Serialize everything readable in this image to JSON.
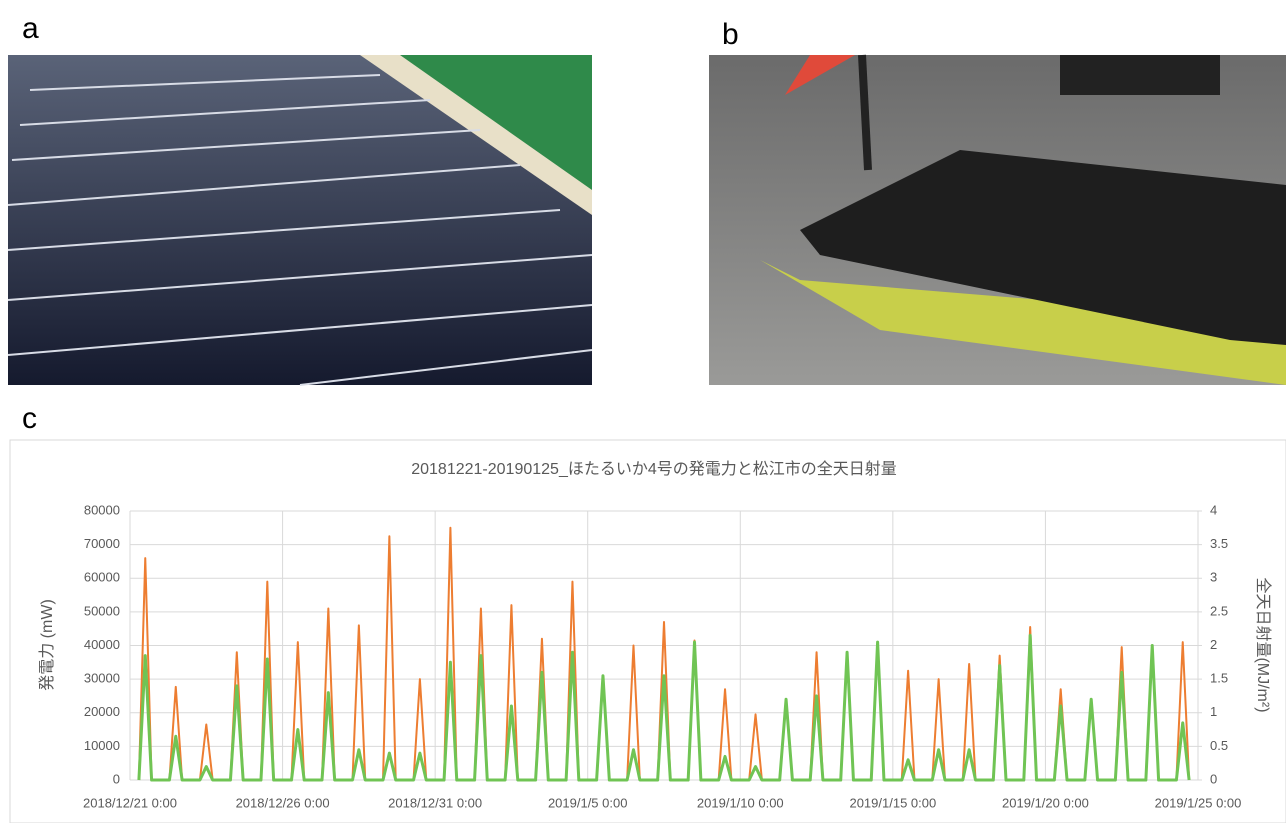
{
  "panel_labels": [
    "a",
    "b",
    "c"
  ],
  "chart_data": {
    "type": "line",
    "title": "20181221-20190125_ほたるいか4号の発電力と松江市の全天日射量",
    "y_label": "発電力 (mW)",
    "y2_label": "全天日射量(MJ/m²)",
    "x": [
      "2018/12/21 7:00",
      "2018/12/21 12:00",
      "2018/12/21 17:00",
      "2018/12/22 7:00",
      "2018/12/22 12:00",
      "2018/12/22 17:00",
      "2018/12/23 7:00",
      "2018/12/23 12:00",
      "2018/12/23 17:00",
      "2018/12/24 7:00",
      "2018/12/24 12:00",
      "2018/12/24 17:00",
      "2018/12/25 7:00",
      "2018/12/25 12:00",
      "2018/12/25 17:00",
      "2018/12/26 7:00",
      "2018/12/26 12:00",
      "2018/12/26 17:00",
      "2018/12/27 7:00",
      "2018/12/27 12:00",
      "2018/12/27 17:00",
      "2018/12/28 7:00",
      "2018/12/28 12:00",
      "2018/12/28 17:00",
      "2018/12/29 7:00",
      "2018/12/29 12:00",
      "2018/12/29 17:00",
      "2018/12/30 7:00",
      "2018/12/30 12:00",
      "2018/12/30 17:00",
      "2018/12/31 7:00",
      "2018/12/31 12:00",
      "2018/12/31 17:00",
      "2019/1/1 7:00",
      "2019/1/1 12:00",
      "2019/1/1 17:00",
      "2019/1/2 7:00",
      "2019/1/2 12:00",
      "2019/1/2 17:00",
      "2019/1/3 7:00",
      "2019/1/3 12:00",
      "2019/1/3 17:00",
      "2019/1/4 7:00",
      "2019/1/4 12:00",
      "2019/1/4 17:00",
      "2019/1/5 7:00",
      "2019/1/5 12:00",
      "2019/1/5 17:00",
      "2019/1/6 7:00",
      "2019/1/6 12:00",
      "2019/1/6 17:00",
      "2019/1/7 7:00",
      "2019/1/7 12:00",
      "2019/1/7 17:00",
      "2019/1/8 7:00",
      "2019/1/8 12:00",
      "2019/1/8 17:00",
      "2019/1/9 7:00",
      "2019/1/9 12:00",
      "2019/1/9 17:00",
      "2019/1/10 7:00",
      "2019/1/10 12:00",
      "2019/1/10 17:00",
      "2019/1/11 7:00",
      "2019/1/11 12:00",
      "2019/1/11 17:00",
      "2019/1/12 7:00",
      "2019/1/12 12:00",
      "2019/1/12 17:00",
      "2019/1/13 7:00",
      "2019/1/13 12:00",
      "2019/1/13 17:00",
      "2019/1/14 7:00",
      "2019/1/14 12:00",
      "2019/1/14 17:00",
      "2019/1/15 7:00",
      "2019/1/15 12:00",
      "2019/1/15 17:00",
      "2019/1/16 7:00",
      "2019/1/16 12:00",
      "2019/1/16 17:00",
      "2019/1/17 7:00",
      "2019/1/17 12:00",
      "2019/1/17 17:00",
      "2019/1/18 7:00",
      "2019/1/18 12:00",
      "2019/1/18 17:00",
      "2019/1/19 7:00",
      "2019/1/19 12:00",
      "2019/1/19 17:00",
      "2019/1/20 7:00",
      "2019/1/20 12:00",
      "2019/1/20 17:00",
      "2019/1/21 7:00",
      "2019/1/21 12:00",
      "2019/1/21 17:00",
      "2019/1/22 7:00",
      "2019/1/22 12:00",
      "2019/1/22 17:00",
      "2019/1/23 7:00",
      "2019/1/23 12:00",
      "2019/1/23 17:00",
      "2019/1/24 7:00",
      "2019/1/24 12:00",
      "2019/1/24 17:00"
    ],
    "series": [
      {
        "color": "#ed7d31",
        "values": [
          0,
          66000,
          0,
          0,
          27700,
          0,
          0,
          16500,
          0,
          0,
          38000,
          0,
          0,
          59000,
          0,
          0,
          41000,
          0,
          0,
          51000,
          0,
          0,
          46000,
          0,
          0,
          72500,
          0,
          0,
          30000,
          0,
          0,
          75000,
          0,
          0,
          51000,
          0,
          0,
          52000,
          0,
          0,
          42000,
          0,
          0,
          59000,
          0,
          0,
          30000,
          0,
          0,
          40000,
          0,
          0,
          47000,
          0,
          0,
          41500,
          0,
          0,
          27000,
          0,
          0,
          19500,
          0,
          0,
          24000,
          0,
          0,
          38000,
          0,
          0,
          38000,
          0,
          0,
          40000,
          0,
          0,
          32500,
          0,
          0,
          30000,
          0,
          0,
          34500,
          0,
          0,
          37000,
          0,
          0,
          45500,
          0,
          0,
          27000,
          0,
          0,
          23500,
          0,
          0,
          39500,
          0,
          0,
          40000,
          0,
          0,
          41000,
          0
        ]
      },
      {
        "color": "#70c454",
        "axis": "y2",
        "values": [
          0,
          1.85,
          0,
          0,
          0.65,
          0,
          0,
          0.2,
          0,
          0,
          1.4,
          0,
          0,
          1.8,
          0,
          0,
          0.75,
          0,
          0,
          1.3,
          0,
          0,
          0.45,
          0,
          0,
          0.4,
          0,
          0,
          0.4,
          0,
          0,
          1.75,
          0,
          0,
          1.85,
          0,
          0,
          1.1,
          0,
          0,
          1.6,
          0,
          0,
          1.9,
          0,
          0,
          1.55,
          0,
          0,
          0.45,
          0,
          0,
          1.55,
          0,
          0,
          2.05,
          0,
          0,
          0.35,
          0,
          0,
          0.2,
          0,
          0,
          1.2,
          0,
          0,
          1.25,
          0,
          0,
          1.9,
          0,
          0,
          2.05,
          0,
          0,
          0.3,
          0,
          0,
          0.45,
          0,
          0,
          0.45,
          0,
          0,
          1.7,
          0,
          0,
          2.15,
          0,
          0,
          1.1,
          0,
          0,
          1.2,
          0,
          0,
          1.6,
          0,
          0,
          2.0,
          0,
          0,
          0.85,
          0
        ]
      }
    ],
    "xlim": [
      "2018/12/21 0:00",
      "2019/1/25 0:00"
    ],
    "xticks": [
      "2018/12/21 0:00",
      "2018/12/26 0:00",
      "2018/12/31 0:00",
      "2019/1/5 0:00",
      "2019/1/10 0:00",
      "2019/1/15 0:00",
      "2019/1/20 0:00",
      "2019/1/25 0:00"
    ],
    "ylim": [
      0,
      80000
    ],
    "yticks": [
      0,
      10000,
      20000,
      30000,
      40000,
      50000,
      60000,
      70000,
      80000
    ],
    "y2lim": [
      0,
      4
    ],
    "y2ticks": [
      0,
      0.5,
      1,
      1.5,
      2,
      2.5,
      3,
      3.5,
      4
    ],
    "grid": true
  }
}
